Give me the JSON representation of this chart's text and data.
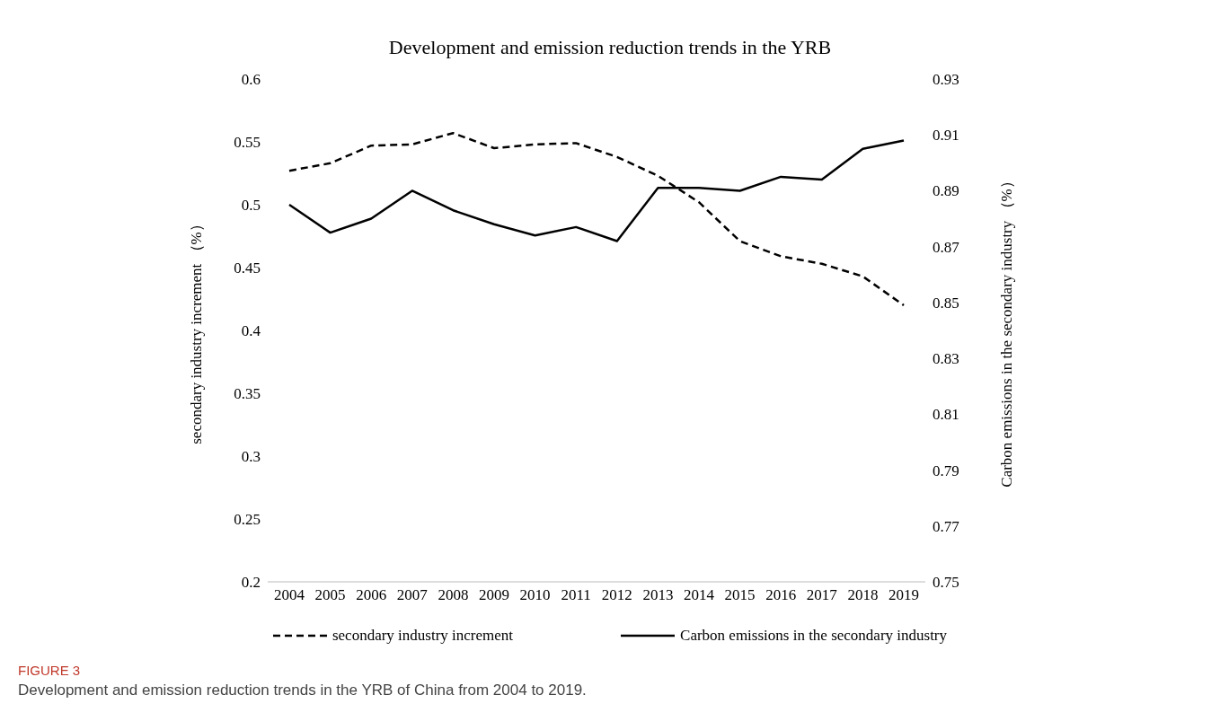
{
  "chart_data": {
    "type": "line",
    "title": "Development and emission reduction trends in the YRB",
    "ylabel": "secondary industry increment （%）",
    "y2label": "Carbon emissions in the secondary industry （%）",
    "categories": [
      "2004",
      "2005",
      "2006",
      "2007",
      "2008",
      "2009",
      "2010",
      "2011",
      "2012",
      "2013",
      "2014",
      "2015",
      "2016",
      "2017",
      "2018",
      "2019"
    ],
    "series": [
      {
        "name": "secondary industry increment",
        "color": "#000000",
        "line_style": "dashed",
        "values": [
          0.527,
          0.533,
          0.547,
          0.548,
          0.557,
          0.545,
          0.548,
          0.549,
          0.538,
          0.523,
          0.502,
          0.471,
          0.459,
          0.453,
          0.443,
          0.42
        ]
      },
      {
        "name": "Carbon emissions in the secondary industry",
        "color": "#000000",
        "line_style": "solid",
        "axis": "y2",
        "values": [
          0.885,
          0.875,
          0.88,
          0.89,
          0.883,
          0.878,
          0.874,
          0.877,
          0.872,
          0.891,
          0.891,
          0.89,
          0.895,
          0.894,
          0.905,
          0.908
        ]
      }
    ],
    "ylim": [
      0.2,
      0.6
    ],
    "yticks": [
      0.2,
      0.25,
      0.3,
      0.35,
      0.4,
      0.45,
      0.5,
      0.55,
      0.6
    ],
    "y2lim": [
      0.75,
      0.93
    ],
    "y2ticks": [
      0.75,
      0.77,
      0.79,
      0.81,
      0.83,
      0.85,
      0.87,
      0.89,
      0.91,
      0.93
    ],
    "grid": false,
    "legend": "bottom",
    "marker": "none",
    "annotations": [
      "FIGURE 3",
      "Development and emission reduction trends in the YRB of China from 2004 to 2019."
    ]
  }
}
